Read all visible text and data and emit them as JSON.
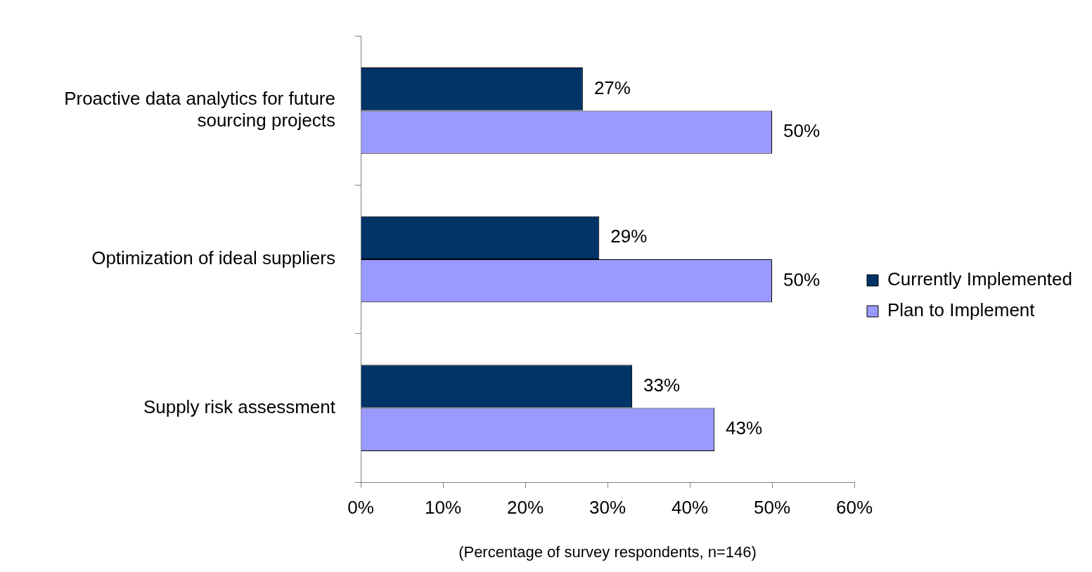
{
  "chart_data": {
    "type": "bar",
    "orientation": "horizontal",
    "categories": [
      "Proactive data analytics for future sourcing projects",
      "Optimization of ideal suppliers",
      "Supply risk assessment"
    ],
    "series": [
      {
        "name": "Currently Implemented",
        "color": "#003366",
        "values": [
          27,
          29,
          33
        ],
        "value_labels": [
          "27%",
          "29%",
          "33%"
        ]
      },
      {
        "name": "Plan to Implement",
        "color": "#9999ff",
        "values": [
          50,
          50,
          43
        ],
        "value_labels": [
          "50%",
          "50%",
          "43%"
        ]
      }
    ],
    "xlim": [
      0,
      60
    ],
    "xticks": [
      {
        "value": 0,
        "label": "0%"
      },
      {
        "value": 10,
        "label": "10%"
      },
      {
        "value": 20,
        "label": "20%"
      },
      {
        "value": 30,
        "label": "30%"
      },
      {
        "value": 40,
        "label": "40%"
      },
      {
        "value": 50,
        "label": "50%"
      },
      {
        "value": 60,
        "label": "60%"
      }
    ],
    "xlabel": "(Percentage of survey respondents, n=146)",
    "legend": "right",
    "grid": false
  }
}
